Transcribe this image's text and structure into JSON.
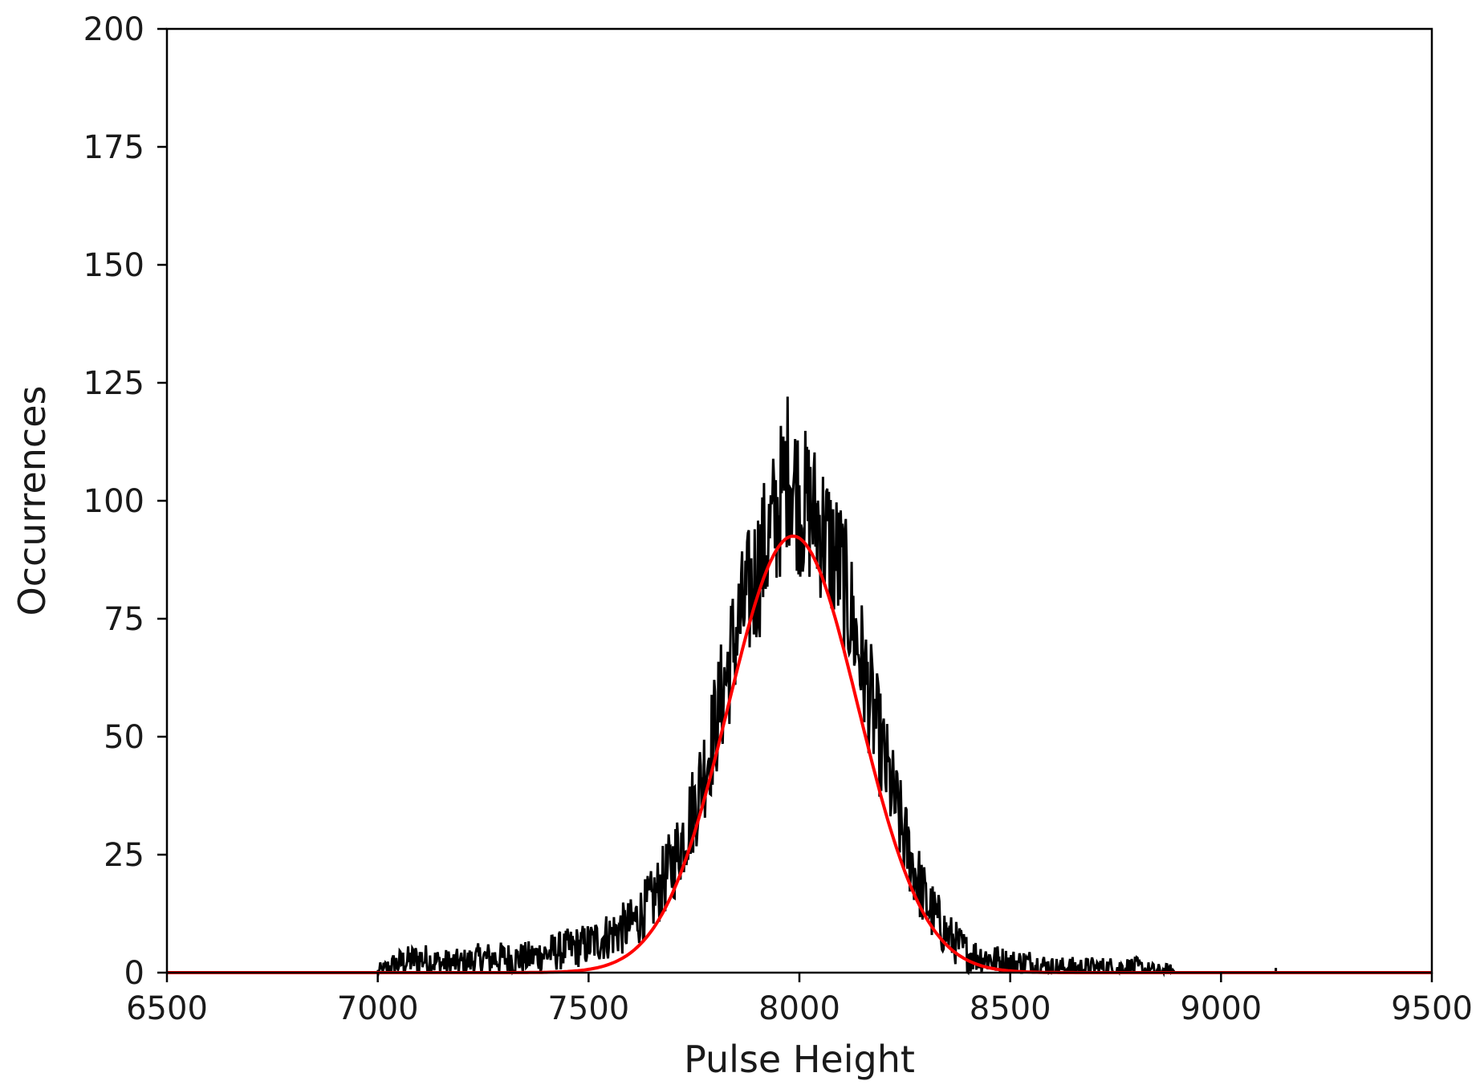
{
  "chart_data": {
    "type": "line",
    "title": "",
    "xlabel": "Pulse Height",
    "ylabel": "Occurrences",
    "xlim": [
      6500,
      9500
    ],
    "ylim": [
      0,
      200
    ],
    "x_ticks": [
      6500,
      7000,
      7500,
      8000,
      8500,
      9000,
      9500
    ],
    "y_ticks": [
      0,
      25,
      50,
      75,
      100,
      125,
      150,
      175,
      200
    ],
    "grid": false,
    "legend": "none",
    "series": [
      {
        "color": "#000000",
        "style": "noisy histogram line",
        "x": [
          7000,
          7050,
          7100,
          7150,
          7200,
          7250,
          7300,
          7350,
          7400,
          7450,
          7500,
          7550,
          7600,
          7650,
          7700,
          7750,
          7800,
          7850,
          7900,
          7950,
          7975,
          8000,
          8025,
          8050,
          8100,
          8150,
          8200,
          8250,
          8300,
          8350,
          8400,
          8450,
          8500,
          8550,
          8600,
          8650,
          8700,
          8750,
          8800,
          8850,
          8900,
          9130
        ],
        "y": [
          0,
          2,
          3,
          2,
          2,
          3,
          3,
          3,
          4,
          5,
          6,
          8,
          10,
          15,
          23,
          35,
          52,
          72,
          85,
          98,
          108,
          100,
          98,
          95,
          85,
          65,
          45,
          28,
          15,
          8,
          4,
          3,
          2,
          2,
          1,
          1,
          1,
          1,
          1,
          0,
          0,
          1
        ]
      },
      {
        "color": "#ff0000",
        "style": "gaussian fit",
        "amplitude": 92.5,
        "mean": 7985,
        "sigma": 155
      }
    ]
  },
  "colors": {
    "data": "#000000",
    "fit": "#ff0000",
    "axes": "#000000"
  }
}
